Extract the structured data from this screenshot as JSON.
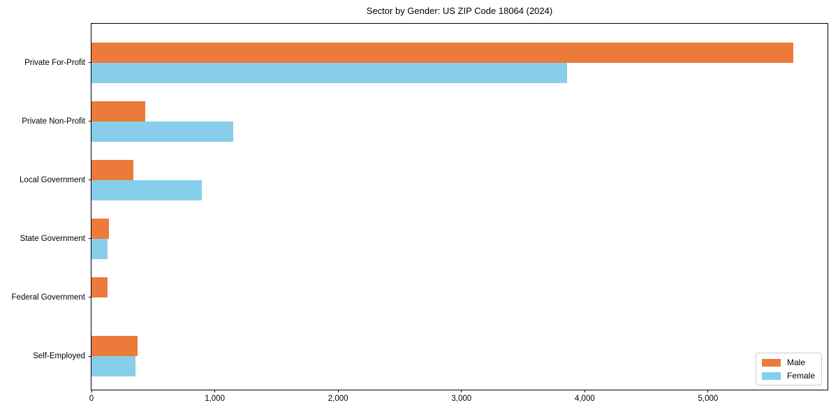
{
  "chart_data": {
    "type": "bar",
    "orientation": "horizontal",
    "title": "Sector by Gender: US ZIP Code 18064 (2024)",
    "categories": [
      "Private For-Profit",
      "Private Non-Profit",
      "Local Government",
      "State Government",
      "Federal Government",
      "Self-Employed"
    ],
    "series": [
      {
        "name": "Male",
        "color": "#ec7a3b",
        "values": [
          5690,
          437,
          340,
          140,
          128,
          374
        ]
      },
      {
        "name": "Female",
        "color": "#87ceeb",
        "values": [
          3855,
          1150,
          895,
          128,
          0,
          357
        ]
      }
    ],
    "xlabel": "",
    "ylabel": "",
    "xlim": [
      0,
      5980
    ],
    "x_tick_values": [
      0,
      1000,
      2000,
      3000,
      4000,
      5000
    ],
    "x_tick_labels": [
      "0",
      "1,000",
      "2,000",
      "3,000",
      "4,000",
      "5,000"
    ],
    "grid": false,
    "legend_position": "lower right",
    "background_color": "#ffffff",
    "frame_color": "#000000"
  },
  "legend": {
    "male_label": "Male",
    "female_label": "Female"
  }
}
